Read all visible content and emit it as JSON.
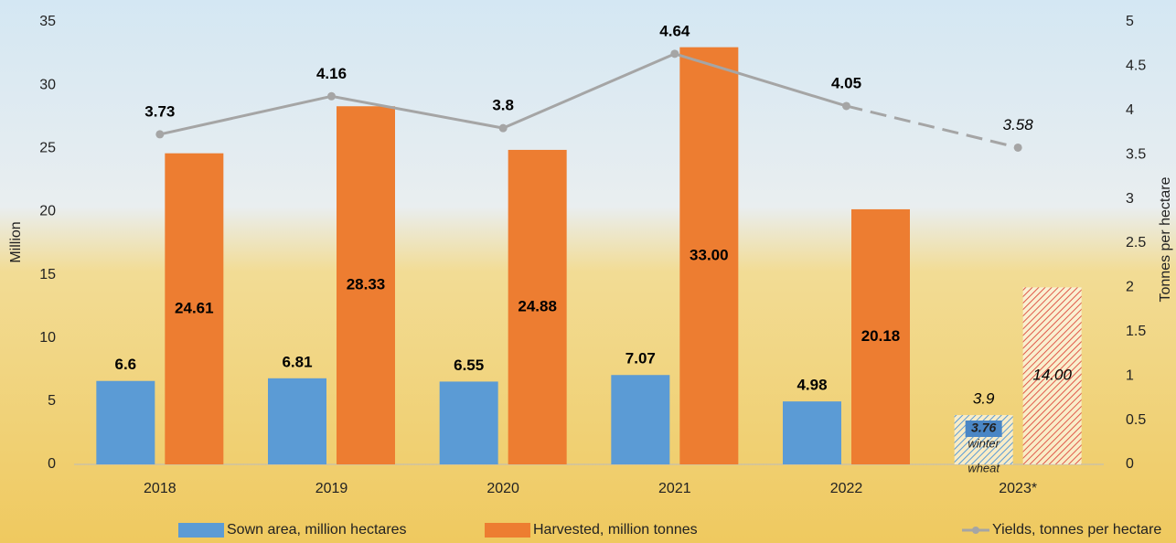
{
  "chart_data": {
    "type": "bar",
    "categories": [
      "2018",
      "2019",
      "2020",
      "2021",
      "2022",
      "2023*"
    ],
    "estimated": [
      false,
      false,
      false,
      false,
      false,
      true
    ],
    "series": [
      {
        "name": "Sown area, million hectares",
        "color": "#5b9bd5",
        "values": [
          6.6,
          6.81,
          6.55,
          7.07,
          4.98,
          3.9
        ]
      },
      {
        "name": "Harvested, million tonnes",
        "color": "#ed7d31",
        "values": [
          24.61,
          28.33,
          24.88,
          33,
          20.18,
          14
        ],
        "value_labels": [
          "24.61",
          "28.33",
          "24.88",
          "33.00",
          "20.18",
          "14.00"
        ]
      },
      {
        "name": "Yields, tonnes per hectare",
        "color": "#a5a5a5",
        "type": "line",
        "axis": "y2",
        "values": [
          3.73,
          4.16,
          3.8,
          4.64,
          4.05,
          3.58
        ]
      }
    ],
    "winter_wheat": {
      "value": 3.76,
      "label_lines": [
        "winter",
        "wheat"
      ]
    },
    "ylabel": "Million",
    "y2label": "Tonnes per hectare",
    "ylim": [
      0,
      35
    ],
    "yticks": [
      0,
      5,
      10,
      15,
      20,
      25,
      30,
      35
    ],
    "y2lim": [
      0,
      5
    ],
    "y2ticks": [
      0,
      0.5,
      1,
      1.5,
      2,
      2.5,
      3,
      3.5,
      4,
      4.5,
      5
    ],
    "legend": "bottom"
  }
}
